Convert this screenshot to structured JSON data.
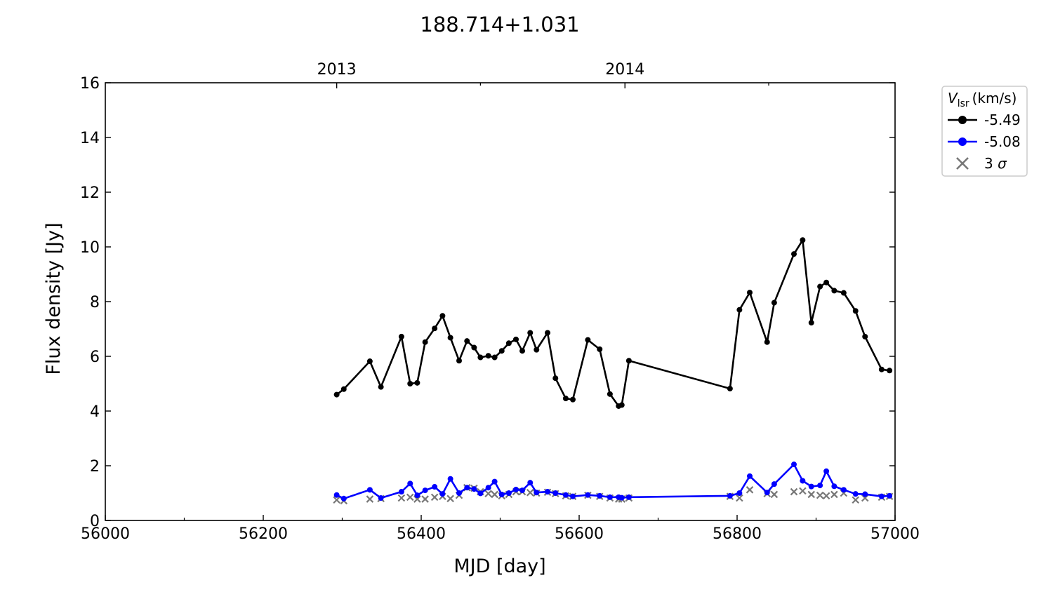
{
  "chart_data": {
    "type": "line",
    "title": "188.714+1.031",
    "xlabel": "MJD [day]",
    "ylabel": "Flux density [Jy]",
    "xlim": [
      56000,
      57000
    ],
    "ylim": [
      0,
      16
    ],
    "xticks": [
      56000,
      56200,
      56400,
      56600,
      56800,
      57000
    ],
    "xticks_minor": [
      56100,
      56300,
      56500,
      56700,
      56900
    ],
    "yticks": [
      0,
      2,
      4,
      6,
      8,
      10,
      12,
      14,
      16
    ],
    "top_axis": {
      "ticks": [
        {
          "x": 56293,
          "label": "2013"
        },
        {
          "x": 56658,
          "label": "2014"
        }
      ],
      "minor_ticks": [
        56475,
        56840
      ]
    },
    "legend": {
      "title_symbol": "V",
      "title_subscript": "lsr",
      "title_unit": "(km/s)",
      "placement": "outside-right-top",
      "entries": [
        {
          "label": "-5.49",
          "color": "#000000",
          "marker": "circle"
        },
        {
          "label": "-5.08",
          "color": "#0000ff",
          "marker": "circle"
        },
        {
          "label": "3 σ",
          "color": "#777777",
          "marker": "x"
        }
      ]
    },
    "series": [
      {
        "name": "-5.49",
        "color": "#000000",
        "marker": "circle",
        "points": [
          [
            56293,
            4.6
          ],
          [
            56302,
            4.8
          ],
          [
            56335,
            5.82
          ],
          [
            56349,
            4.88
          ],
          [
            56375,
            6.72
          ],
          [
            56386,
            5.0
          ],
          [
            56395,
            5.03
          ],
          [
            56405,
            6.52
          ],
          [
            56417,
            7.02
          ],
          [
            56427,
            7.48
          ],
          [
            56437,
            6.68
          ],
          [
            56448,
            5.84
          ],
          [
            56458,
            6.56
          ],
          [
            56467,
            6.32
          ],
          [
            56475,
            5.96
          ],
          [
            56485,
            6.02
          ],
          [
            56493,
            5.96
          ],
          [
            56502,
            6.2
          ],
          [
            56511,
            6.48
          ],
          [
            56520,
            6.62
          ],
          [
            56528,
            6.2
          ],
          [
            56538,
            6.86
          ],
          [
            56546,
            6.24
          ],
          [
            56560,
            6.86
          ],
          [
            56570,
            5.2
          ],
          [
            56583,
            4.46
          ],
          [
            56592,
            4.42
          ],
          [
            56611,
            6.6
          ],
          [
            56626,
            6.26
          ],
          [
            56639,
            4.62
          ],
          [
            56650,
            4.18
          ],
          [
            56654,
            4.22
          ],
          [
            56663,
            5.84
          ],
          [
            56791,
            4.82
          ],
          [
            56803,
            7.7
          ],
          [
            56816,
            8.33
          ],
          [
            56838,
            6.52
          ],
          [
            56847,
            7.96
          ],
          [
            56872,
            9.74
          ],
          [
            56883,
            10.25
          ],
          [
            56894,
            7.23
          ],
          [
            56905,
            8.55
          ],
          [
            56913,
            8.7
          ],
          [
            56923,
            8.4
          ],
          [
            56935,
            8.32
          ],
          [
            56950,
            7.66
          ],
          [
            56962,
            6.72
          ],
          [
            56983,
            5.52
          ],
          [
            56993,
            5.48
          ]
        ]
      },
      {
        "name": "-5.08",
        "color": "#0000ff",
        "marker": "circle",
        "points": [
          [
            56293,
            0.93
          ],
          [
            56302,
            0.8
          ],
          [
            56335,
            1.12
          ],
          [
            56349,
            0.82
          ],
          [
            56375,
            1.05
          ],
          [
            56386,
            1.35
          ],
          [
            56395,
            0.92
          ],
          [
            56405,
            1.1
          ],
          [
            56417,
            1.23
          ],
          [
            56427,
            0.97
          ],
          [
            56437,
            1.52
          ],
          [
            56448,
            1.0
          ],
          [
            56458,
            1.2
          ],
          [
            56467,
            1.15
          ],
          [
            56475,
            0.99
          ],
          [
            56485,
            1.2
          ],
          [
            56493,
            1.42
          ],
          [
            56502,
            0.95
          ],
          [
            56511,
            1.0
          ],
          [
            56520,
            1.13
          ],
          [
            56528,
            1.1
          ],
          [
            56538,
            1.38
          ],
          [
            56546,
            1.02
          ],
          [
            56560,
            1.05
          ],
          [
            56570,
            1.0
          ],
          [
            56583,
            0.93
          ],
          [
            56592,
            0.88
          ],
          [
            56611,
            0.93
          ],
          [
            56626,
            0.9
          ],
          [
            56639,
            0.85
          ],
          [
            56650,
            0.85
          ],
          [
            56654,
            0.83
          ],
          [
            56663,
            0.85
          ],
          [
            56791,
            0.9
          ],
          [
            56803,
            1.0
          ],
          [
            56816,
            1.62
          ],
          [
            56838,
            1.02
          ],
          [
            56847,
            1.33
          ],
          [
            56872,
            2.05
          ],
          [
            56883,
            1.45
          ],
          [
            56894,
            1.24
          ],
          [
            56905,
            1.28
          ],
          [
            56913,
            1.8
          ],
          [
            56923,
            1.25
          ],
          [
            56935,
            1.12
          ],
          [
            56950,
            0.97
          ],
          [
            56962,
            0.96
          ],
          [
            56983,
            0.88
          ],
          [
            56993,
            0.9
          ]
        ]
      },
      {
        "name": "3 σ",
        "color": "#777777",
        "marker": "x",
        "points": [
          [
            56293,
            0.75
          ],
          [
            56302,
            0.72
          ],
          [
            56335,
            0.78
          ],
          [
            56349,
            0.8
          ],
          [
            56375,
            0.82
          ],
          [
            56386,
            0.85
          ],
          [
            56395,
            0.78
          ],
          [
            56405,
            0.78
          ],
          [
            56417,
            0.85
          ],
          [
            56427,
            0.88
          ],
          [
            56437,
            0.8
          ],
          [
            56448,
            0.92
          ],
          [
            56458,
            1.2
          ],
          [
            56467,
            1.18
          ],
          [
            56475,
            1.05
          ],
          [
            56485,
            0.98
          ],
          [
            56493,
            0.95
          ],
          [
            56502,
            0.9
          ],
          [
            56511,
            0.95
          ],
          [
            56520,
            1.05
          ],
          [
            56528,
            1.05
          ],
          [
            56538,
            1.02
          ],
          [
            56546,
            1.0
          ],
          [
            56560,
            1.03
          ],
          [
            56570,
            0.98
          ],
          [
            56583,
            0.9
          ],
          [
            56592,
            0.88
          ],
          [
            56611,
            0.92
          ],
          [
            56626,
            0.88
          ],
          [
            56639,
            0.82
          ],
          [
            56650,
            0.78
          ],
          [
            56654,
            0.78
          ],
          [
            56663,
            0.82
          ],
          [
            56791,
            0.88
          ],
          [
            56803,
            0.82
          ],
          [
            56816,
            1.12
          ],
          [
            56838,
            0.98
          ],
          [
            56847,
            0.95
          ],
          [
            56872,
            1.05
          ],
          [
            56883,
            1.08
          ],
          [
            56894,
            0.95
          ],
          [
            56905,
            0.92
          ],
          [
            56913,
            0.9
          ],
          [
            56923,
            0.95
          ],
          [
            56935,
            1.0
          ],
          [
            56950,
            0.75
          ],
          [
            56962,
            0.82
          ],
          [
            56983,
            0.85
          ],
          [
            56993,
            0.88
          ]
        ]
      }
    ]
  }
}
